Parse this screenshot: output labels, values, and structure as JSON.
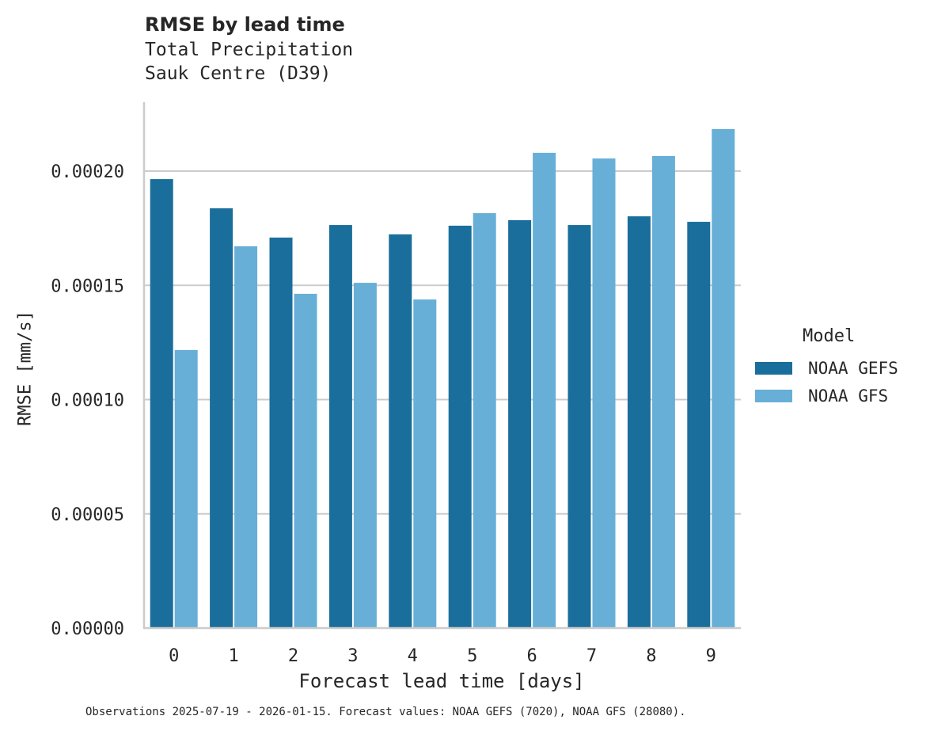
{
  "title": "RMSE by lead time",
  "subtitle_lines": [
    "Total Precipitation",
    "Sauk Centre (D39)"
  ],
  "footnote": "Observations 2025-07-19 - 2026-01-15. Forecast values: NOAA GEFS (7020), NOAA GFS (28080).",
  "colors": {
    "NOAA GEFS": "#1a6e9b",
    "NOAA GFS": "#67afd7",
    "grid": "#cccccc",
    "axis": "#cccccc",
    "text": "#262626"
  },
  "legend": {
    "title": "Model",
    "items": [
      {
        "label": "NOAA GEFS",
        "color": "#1a6e9b"
      },
      {
        "label": "NOAA GFS",
        "color": "#67afd7"
      }
    ]
  },
  "chart_data": {
    "type": "bar",
    "title": "RMSE by lead time",
    "subtitle": "Total Precipitation\nSauk Centre (D39)",
    "xlabel": "Forecast lead time [days]",
    "ylabel": "RMSE [mm/s]",
    "categories": [
      "0",
      "1",
      "2",
      "3",
      "4",
      "5",
      "6",
      "7",
      "8",
      "9"
    ],
    "series": [
      {
        "name": "NOAA GEFS",
        "values": [
          0.0001965,
          0.0001837,
          0.0001709,
          0.0001764,
          0.0001723,
          0.0001761,
          0.0001785,
          0.0001764,
          0.0001802,
          0.0001778
        ]
      },
      {
        "name": "NOAA GFS",
        "values": [
          0.0001217,
          0.0001671,
          0.0001463,
          0.0001511,
          0.0001438,
          0.0001816,
          0.000208,
          0.0002055,
          0.0002066,
          0.0002184
        ]
      }
    ],
    "yticks": [
      0,
      5e-05,
      0.0001,
      0.00015,
      0.0002
    ],
    "ytick_labels": [
      "0.00000",
      "0.00005",
      "0.00010",
      "0.00015",
      "0.00020"
    ],
    "ylim": [
      0,
      0.000229
    ],
    "grid": "horizontal",
    "legend_position": "right",
    "legend_title": "Model"
  }
}
